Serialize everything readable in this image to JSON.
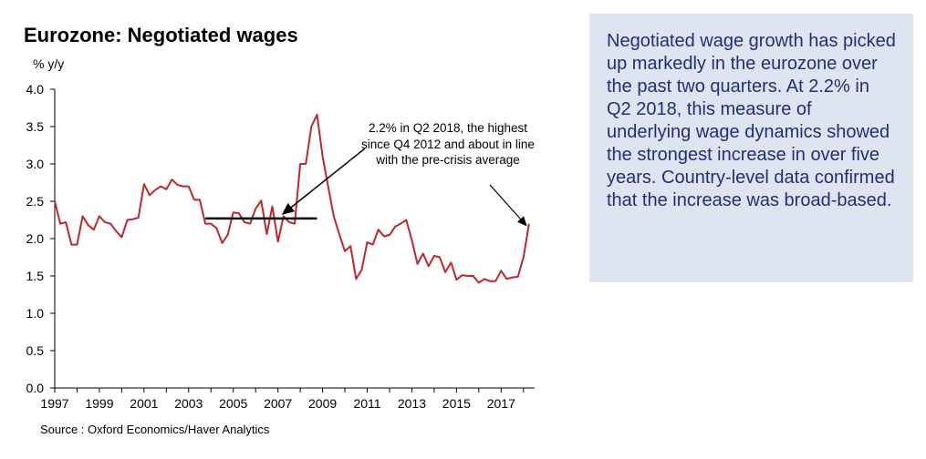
{
  "title": "Eurozone: Negotiated wages",
  "unit_label": "% y/y",
  "source": "Source : Oxford Economics/Haver Analytics",
  "annotation": "2.2% in Q2 2018, the highest since Q4 2012 and about in line with the pre-crisis average",
  "note": "Negotiated wage growth has picked up markedly in the eurozone over the past two quarters. At 2.2% in Q2 2018, this measure of underlying wage dynamics showed the strongest increase in over five years. Country-level data confirmed that the increase was broad-based.",
  "colors": {
    "line": "#c0272d",
    "panel": "#dfe4f1",
    "panel_text": "#1f2f7a",
    "arrow": "#000000"
  },
  "chart_data": {
    "type": "line",
    "title": "Eurozone: Negotiated wages",
    "ylabel": "% y/y",
    "ylim": [
      0,
      4.0
    ],
    "yticks": [
      "0.0",
      "0.5",
      "1.0",
      "1.5",
      "2.0",
      "2.5",
      "3.0",
      "3.5",
      "4.0"
    ],
    "xlim": [
      1997,
      2018.5
    ],
    "xticks": [
      "1997",
      "1999",
      "2001",
      "2003",
      "2005",
      "2007",
      "2009",
      "2011",
      "2013",
      "2015",
      "2017"
    ],
    "grid": false,
    "reference_line": {
      "label": "pre-crisis average",
      "value": 2.27,
      "x_range": [
        2003.75,
        2008.75
      ]
    },
    "series": [
      {
        "x": [
          1997.0,
          1997.25,
          1997.5,
          1997.75,
          1998.0,
          1998.25,
          1998.5,
          1998.75,
          1999.0,
          1999.25,
          1999.5,
          1999.75,
          2000.0,
          2000.25,
          2000.5,
          2000.75,
          2001.0,
          2001.25,
          2001.5,
          2001.75,
          2002.0,
          2002.25,
          2002.5,
          2002.75,
          2003.0,
          2003.25,
          2003.5,
          2003.75,
          2004.0,
          2004.25,
          2004.5,
          2004.75,
          2005.0,
          2005.25,
          2005.5,
          2005.75,
          2006.0,
          2006.25,
          2006.5,
          2006.75,
          2007.0,
          2007.25,
          2007.5,
          2007.75,
          2008.0,
          2008.25,
          2008.5,
          2008.75,
          2009.0,
          2009.25,
          2009.5,
          2009.75,
          2010.0,
          2010.25,
          2010.5,
          2010.75,
          2011.0,
          2011.25,
          2011.5,
          2011.75,
          2012.0,
          2012.25,
          2012.5,
          2012.75,
          2013.0,
          2013.25,
          2013.5,
          2013.75,
          2014.0,
          2014.25,
          2014.5,
          2014.75,
          2015.0,
          2015.25,
          2015.5,
          2015.75,
          2016.0,
          2016.25,
          2016.5,
          2016.75,
          2017.0,
          2017.25,
          2017.5,
          2017.75,
          2018.0,
          2018.25
        ],
        "values": [
          2.5,
          2.2,
          2.22,
          1.92,
          1.92,
          2.3,
          2.18,
          2.12,
          2.3,
          2.22,
          2.2,
          2.1,
          2.02,
          2.25,
          2.26,
          2.28,
          2.73,
          2.58,
          2.65,
          2.7,
          2.66,
          2.79,
          2.72,
          2.7,
          2.7,
          2.52,
          2.52,
          2.2,
          2.2,
          2.14,
          1.94,
          2.05,
          2.35,
          2.34,
          2.22,
          2.2,
          2.4,
          2.51,
          2.06,
          2.43,
          1.96,
          2.3,
          2.22,
          2.2,
          3.0,
          3.0,
          3.5,
          3.66,
          3.1,
          2.7,
          2.3,
          2.06,
          1.83,
          1.9,
          1.46,
          1.58,
          1.95,
          1.92,
          2.12,
          2.03,
          2.05,
          2.16,
          2.2,
          2.25,
          1.98,
          1.66,
          1.8,
          1.63,
          1.77,
          1.75,
          1.55,
          1.68,
          1.45,
          1.51,
          1.5,
          1.5,
          1.41,
          1.46,
          1.43,
          1.43,
          1.57,
          1.46,
          1.48,
          1.49,
          1.75,
          2.2
        ]
      }
    ]
  }
}
